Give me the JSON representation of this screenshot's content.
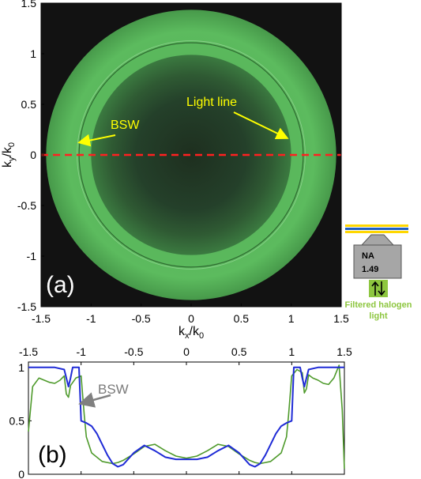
{
  "panel_a": {
    "label": "(a)",
    "xlabel": "k",
    "xlabel_sub": "x",
    "xlabel_den": "/k",
    "xlabel_den_sub": "0",
    "ylabel": "k",
    "ylabel_sub": "y",
    "ylabel_den": "/k",
    "ylabel_den_sub": "0",
    "annotation_bsw": "BSW",
    "annotation_light_line": "Light line",
    "colors": {
      "ring": "#57b85a",
      "inner": "#2a4a2c",
      "background": "#111111",
      "annotation": "#ffff00",
      "cut_line": "#ff2020"
    }
  },
  "panel_b": {
    "label": "(b)",
    "annotation_bsw": "BSW",
    "colors": {
      "blue": "#1f2bd6",
      "green": "#4e9a2b",
      "arrow": "#808080"
    }
  },
  "schematic": {
    "na_label": "NA",
    "na_value": "1.49",
    "light_label_1": "Filtered halogen",
    "light_label_2": "light",
    "colors": {
      "objective": "#a6a6a6",
      "light": "#8dc63f",
      "layer_blue": "#1f5fbf",
      "layer_yellow": "#ffd700"
    }
  },
  "chart_data": [
    {
      "type": "image",
      "panel": "(a)",
      "xlim": [
        -1.5,
        1.5
      ],
      "ylim": [
        -1.5,
        1.5
      ],
      "xticks": [
        "-1.5",
        "-1",
        "-0.5",
        "0",
        "0.5",
        "1",
        "1.5"
      ],
      "yticks": [
        "1.5",
        "1",
        "0.5",
        "0",
        "-0.5",
        "-1",
        "-1.5"
      ],
      "cut_line_y": 0,
      "light_line_radius": 1.0,
      "bsw_radius": 1.12,
      "outer_radius": 1.45
    },
    {
      "type": "line",
      "panel": "(b)",
      "xlim": [
        -1.5,
        1.5
      ],
      "ylim": [
        0,
        1.05
      ],
      "xticks": [
        "-1.5",
        "-1",
        "-0.5",
        "0",
        "0.5",
        "1",
        "1.5"
      ],
      "yticks": [
        "1",
        "0.5",
        "0"
      ],
      "series": [
        {
          "color": "blue",
          "x": [
            -1.5,
            -1.25,
            -1.16,
            -1.14,
            -1.12,
            -1.1,
            -1.08,
            -1.02,
            -1.0,
            -0.95,
            -0.9,
            -0.85,
            -0.8,
            -0.75,
            -0.7,
            -0.65,
            -0.6,
            -0.5,
            -0.4,
            -0.3,
            -0.2,
            -0.1,
            0,
            0.1,
            0.2,
            0.3,
            0.4,
            0.5,
            0.6,
            0.65,
            0.7,
            0.75,
            0.8,
            0.85,
            0.9,
            0.95,
            1.0,
            1.02,
            1.08,
            1.1,
            1.12,
            1.14,
            1.16,
            1.25,
            1.5
          ],
          "y": [
            1.0,
            1.0,
            0.98,
            0.9,
            0.82,
            0.9,
            1.0,
            1.0,
            0.5,
            0.48,
            0.45,
            0.38,
            0.28,
            0.18,
            0.1,
            0.07,
            0.09,
            0.2,
            0.27,
            0.22,
            0.16,
            0.14,
            0.14,
            0.14,
            0.16,
            0.22,
            0.27,
            0.2,
            0.09,
            0.07,
            0.1,
            0.18,
            0.28,
            0.38,
            0.45,
            0.48,
            0.5,
            1.0,
            1.0,
            0.9,
            0.82,
            0.9,
            0.98,
            1.0,
            1.0
          ]
        },
        {
          "color": "green",
          "x": [
            -1.5,
            -1.46,
            -1.4,
            -1.35,
            -1.3,
            -1.25,
            -1.2,
            -1.16,
            -1.14,
            -1.12,
            -1.1,
            -1.05,
            -1.0,
            -0.97,
            -0.95,
            -0.9,
            -0.8,
            -0.7,
            -0.65,
            -0.6,
            -0.5,
            -0.4,
            -0.3,
            -0.2,
            -0.1,
            0,
            0.1,
            0.2,
            0.3,
            0.4,
            0.5,
            0.6,
            0.65,
            0.7,
            0.8,
            0.9,
            0.95,
            0.97,
            1.0,
            1.05,
            1.1,
            1.12,
            1.14,
            1.16,
            1.2,
            1.25,
            1.3,
            1.35,
            1.4,
            1.45,
            1.48,
            1.5
          ],
          "y": [
            0.4,
            0.82,
            0.9,
            0.88,
            0.86,
            0.85,
            0.88,
            0.92,
            0.75,
            0.72,
            0.83,
            0.9,
            0.92,
            0.55,
            0.35,
            0.2,
            0.12,
            0.1,
            0.11,
            0.13,
            0.19,
            0.26,
            0.28,
            0.22,
            0.17,
            0.15,
            0.17,
            0.22,
            0.28,
            0.26,
            0.19,
            0.13,
            0.11,
            0.1,
            0.12,
            0.2,
            0.35,
            0.55,
            0.92,
            0.98,
            0.95,
            0.76,
            0.8,
            0.93,
            0.9,
            0.88,
            0.85,
            0.84,
            0.9,
            1.02,
            0.6,
            0.05
          ]
        }
      ]
    }
  ]
}
